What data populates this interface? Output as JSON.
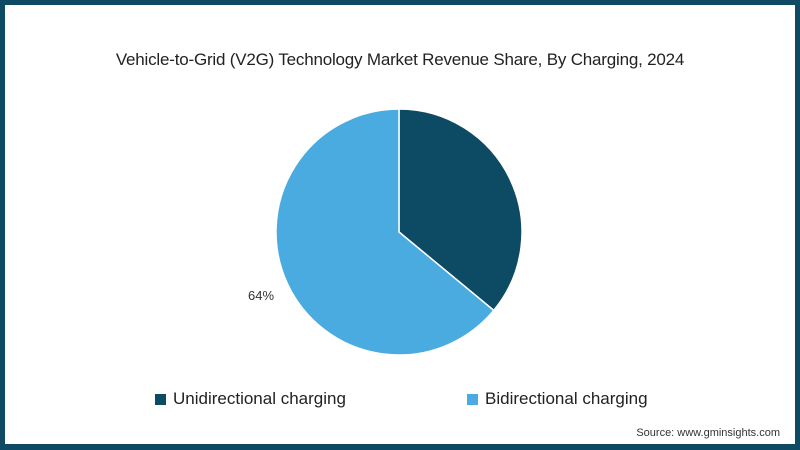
{
  "chart_data": {
    "type": "pie",
    "title": "Vehicle-to-Grid (V2G) Technology Market Revenue Share, By Charging, 2024",
    "categories": [
      "Unidirectional charging",
      "Bidirectional charging"
    ],
    "values": [
      36,
      64
    ],
    "colors": [
      "#0d4a63",
      "#4aabe0"
    ],
    "data_labels": {
      "Bidirectional charging": "64%"
    },
    "legend_position": "bottom"
  },
  "header": {
    "title": "Vehicle-to-Grid (V2G) Technology Market Revenue Share, By Charging, 2024"
  },
  "labels": {
    "bidirectional_pct": "64%"
  },
  "legend": {
    "items": [
      {
        "label": "Unidirectional charging",
        "color": "#0d4a63"
      },
      {
        "label": "Bidirectional charging",
        "color": "#4aabe0"
      }
    ]
  },
  "footer": {
    "source": "Source: www.gminsights.com"
  },
  "colors": {
    "frame_border": "#0e4a64",
    "background": "#ffffff"
  }
}
